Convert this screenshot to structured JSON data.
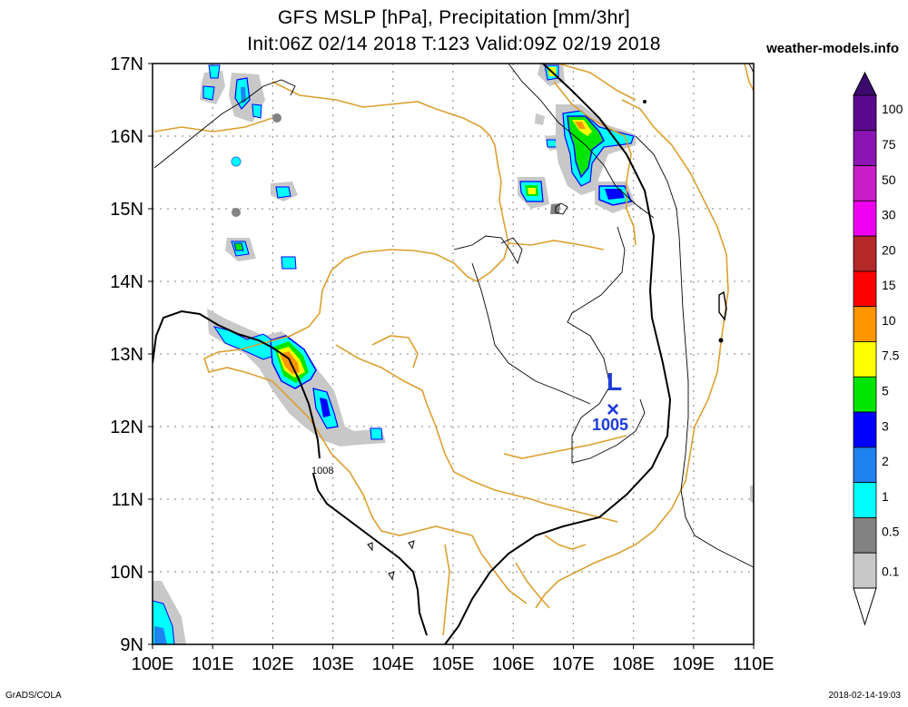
{
  "title": {
    "line1": "GFS MSLP [hPa], Precipitation [mm/3hr]",
    "line2": "Init:06Z 02/14 2018 T:123 Valid:09Z 02/19 2018"
  },
  "site": "weather-models.info",
  "footer": {
    "left": "GrADS/COLA",
    "right": "2018-02-14-19:03"
  },
  "map": {
    "lat_labels": [
      "17N",
      "16N",
      "15N",
      "14N",
      "13N",
      "12N",
      "11N",
      "10N",
      "9N"
    ],
    "lon_labels": [
      "100E",
      "101E",
      "102E",
      "103E",
      "104E",
      "105E",
      "106E",
      "107E",
      "108E",
      "109E",
      "110E"
    ],
    "low_symbol": "L",
    "low_marker": "×",
    "low_value": "1005",
    "isobar_label": "1008"
  },
  "colorbar": {
    "levels": [
      "100",
      "75",
      "50",
      "30",
      "20",
      "15",
      "10",
      "7.5",
      "5",
      "3",
      "2",
      "1",
      "0.5",
      "0.1"
    ],
    "colors": [
      "#5a0a8c",
      "#8c14b4",
      "#c81ec8",
      "#f000f0",
      "#b42828",
      "#ff0000",
      "#ff9600",
      "#ffff00",
      "#00e600",
      "#0000ff",
      "#1e82f0",
      "#00ffff",
      "#828282",
      "#c8c8c8"
    ]
  }
}
